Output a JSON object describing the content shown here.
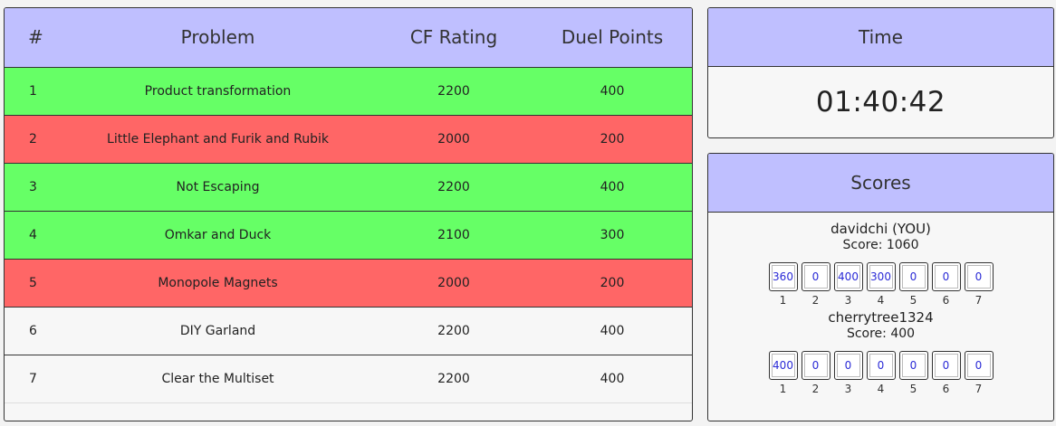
{
  "problems_table": {
    "headers": {
      "num": "#",
      "problem": "Problem",
      "rating": "CF Rating",
      "points": "Duel Points"
    },
    "rows": [
      {
        "num": "1",
        "problem": "Product transformation",
        "rating": "2200",
        "points": "400",
        "status": "solved"
      },
      {
        "num": "2",
        "problem": "Little Elephant and Furik and Rubik",
        "rating": "2000",
        "points": "200",
        "status": "lost"
      },
      {
        "num": "3",
        "problem": "Not Escaping",
        "rating": "2200",
        "points": "400",
        "status": "solved"
      },
      {
        "num": "4",
        "problem": "Omkar and Duck",
        "rating": "2100",
        "points": "300",
        "status": "solved"
      },
      {
        "num": "5",
        "problem": "Monopole Magnets",
        "rating": "2000",
        "points": "200",
        "status": "lost"
      },
      {
        "num": "6",
        "problem": "DIY Garland",
        "rating": "2200",
        "points": "400",
        "status": "open"
      },
      {
        "num": "7",
        "problem": "Clear the Multiset",
        "rating": "2200",
        "points": "400",
        "status": "open"
      }
    ]
  },
  "time": {
    "title": "Time",
    "value": "01:40:42"
  },
  "scores": {
    "title": "Scores",
    "players": [
      {
        "name": "davidchi (YOU)",
        "score_text": "Score: 1060",
        "problem_points": [
          "360",
          "0",
          "400",
          "300",
          "0",
          "0",
          "0"
        ],
        "indices": [
          "1",
          "2",
          "3",
          "4",
          "5",
          "6",
          "7"
        ]
      },
      {
        "name": "cherrytree1324",
        "score_text": "Score: 400",
        "problem_points": [
          "400",
          "0",
          "0",
          "0",
          "0",
          "0",
          "0"
        ],
        "indices": [
          "1",
          "2",
          "3",
          "4",
          "5",
          "6",
          "7"
        ]
      }
    ]
  },
  "colors": {
    "header": "#bfbfff",
    "solved": "#66ff66",
    "lost": "#ff6666",
    "open": "#f7f7f7",
    "box_text": "#2b2bd6"
  }
}
